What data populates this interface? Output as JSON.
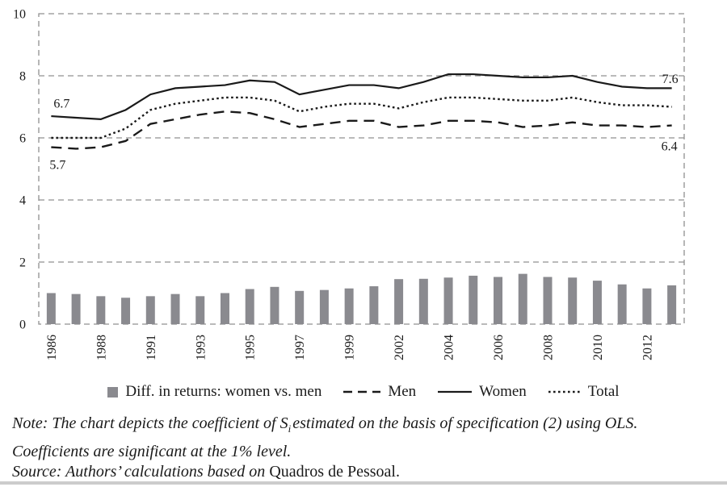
{
  "chart_data": {
    "type": "bar",
    "subtype": "combo-bar-and-lines",
    "title": "",
    "xlabel": "",
    "ylabel": "",
    "ylim": [
      0,
      10
    ],
    "grid": "dashed-horizontal",
    "legend_position": "bottom",
    "categories": [
      "1986",
      "1987",
      "1988",
      "1989",
      "1991",
      "1992",
      "1993",
      "1994",
      "1995",
      "1996",
      "1997",
      "1998",
      "1999",
      "2000",
      "2002",
      "2003",
      "2004",
      "2005",
      "2006",
      "2007",
      "2008",
      "2009",
      "2010",
      "2011",
      "2012",
      "2013"
    ],
    "x_tick_labels": [
      {
        "index": 0,
        "label": "1986"
      },
      {
        "index": 2,
        "label": "1988"
      },
      {
        "index": 4,
        "label": "1991"
      },
      {
        "index": 6,
        "label": "1993"
      },
      {
        "index": 8,
        "label": "1995"
      },
      {
        "index": 10,
        "label": "1997"
      },
      {
        "index": 12,
        "label": "1999"
      },
      {
        "index": 14,
        "label": "2002"
      },
      {
        "index": 16,
        "label": "2004"
      },
      {
        "index": 18,
        "label": "2006"
      },
      {
        "index": 20,
        "label": "2008"
      },
      {
        "index": 22,
        "label": "2010"
      },
      {
        "index": 24,
        "label": "2012"
      }
    ],
    "y_axis": {
      "min": 0,
      "max": 10,
      "step": 2,
      "tick_labels": [
        "0",
        "2",
        "4",
        "6",
        "8",
        "10"
      ]
    },
    "series": [
      {
        "name": "Diff. in returns: women vs. men",
        "type": "bar",
        "values": [
          1.0,
          0.97,
          0.9,
          0.85,
          0.9,
          0.97,
          0.9,
          1.0,
          1.13,
          1.2,
          1.07,
          1.1,
          1.15,
          1.22,
          1.45,
          1.46,
          1.5,
          1.56,
          1.52,
          1.62,
          1.52,
          1.5,
          1.4,
          1.28,
          1.15,
          1.25
        ]
      },
      {
        "name": "Men",
        "type": "line",
        "style": "dashed",
        "values": [
          5.7,
          5.65,
          5.7,
          5.9,
          6.45,
          6.6,
          6.75,
          6.85,
          6.8,
          6.6,
          6.35,
          6.45,
          6.55,
          6.55,
          6.35,
          6.4,
          6.55,
          6.55,
          6.5,
          6.35,
          6.4,
          6.5,
          6.4,
          6.4,
          6.35,
          6.4
        ]
      },
      {
        "name": "Women",
        "type": "line",
        "style": "solid",
        "values": [
          6.7,
          6.65,
          6.6,
          6.9,
          7.4,
          7.6,
          7.65,
          7.7,
          7.85,
          7.8,
          7.4,
          7.55,
          7.7,
          7.7,
          7.6,
          7.8,
          8.05,
          8.05,
          8.0,
          7.95,
          7.95,
          8.0,
          7.8,
          7.65,
          7.6,
          7.6
        ]
      },
      {
        "name": "Total",
        "type": "line",
        "style": "dotted",
        "values": [
          6.0,
          6.0,
          6.0,
          6.3,
          6.9,
          7.1,
          7.2,
          7.3,
          7.3,
          7.2,
          6.85,
          7.0,
          7.1,
          7.1,
          6.95,
          7.15,
          7.3,
          7.3,
          7.25,
          7.2,
          7.2,
          7.3,
          7.15,
          7.05,
          7.05,
          7.0
        ]
      }
    ],
    "annotations": [
      {
        "text": "6.7",
        "x_index": 0,
        "value": 6.97,
        "anchor": "start",
        "dx": 3
      },
      {
        "text": "5.7",
        "x_index": 0,
        "value": 5.0,
        "anchor": "start",
        "dx": -2
      },
      {
        "text": "7.6",
        "x_index": 25,
        "value": 7.76,
        "anchor": "end",
        "dx": 8
      },
      {
        "text": "6.4",
        "x_index": 25,
        "value": 5.6,
        "anchor": "end",
        "dx": 7
      }
    ]
  },
  "note": {
    "prefix": "Note: The chart depicts the coefficient of S",
    "subscript": "i",
    "suffix": "estimated on the basis of specification (2) using OLS. Coefficients are significant at the 1% level."
  },
  "source": {
    "italic": "Source: Authors’ calculations based on",
    "regular": "Quadros de Pessoal."
  },
  "colors": {
    "bar": "#8a8a8f",
    "line": "#1a1a1a",
    "grid": "#909090",
    "text": "#1a1a1a",
    "divider": "#cccccc"
  }
}
